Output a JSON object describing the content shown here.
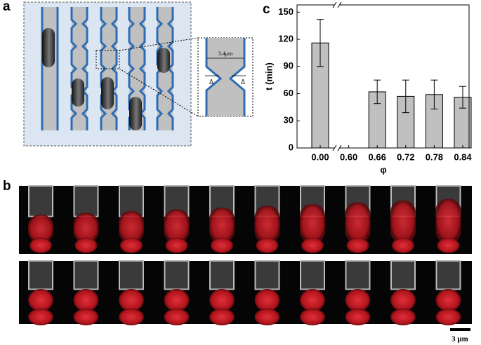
{
  "panel_labels": [
    "a",
    "b",
    "c"
  ],
  "diagram": {
    "width_label": "3.4μm",
    "gap_labels": [
      "Δ",
      "Δ"
    ]
  },
  "scale_bar": "3 μm",
  "chart_data": {
    "type": "bar",
    "y_label": "t (min)",
    "x_label": "φ",
    "categories": [
      "0.00",
      "0.60",
      "0.66",
      "0.72",
      "0.78",
      "0.84"
    ],
    "values": [
      116,
      null,
      62,
      57,
      59,
      56
    ],
    "errors": [
      26,
      null,
      13,
      18,
      16,
      12
    ],
    "color": "#c0c0c0",
    "ylim": [
      0,
      158
    ],
    "yticks": [
      0,
      30,
      60,
      90,
      120,
      150
    ]
  }
}
